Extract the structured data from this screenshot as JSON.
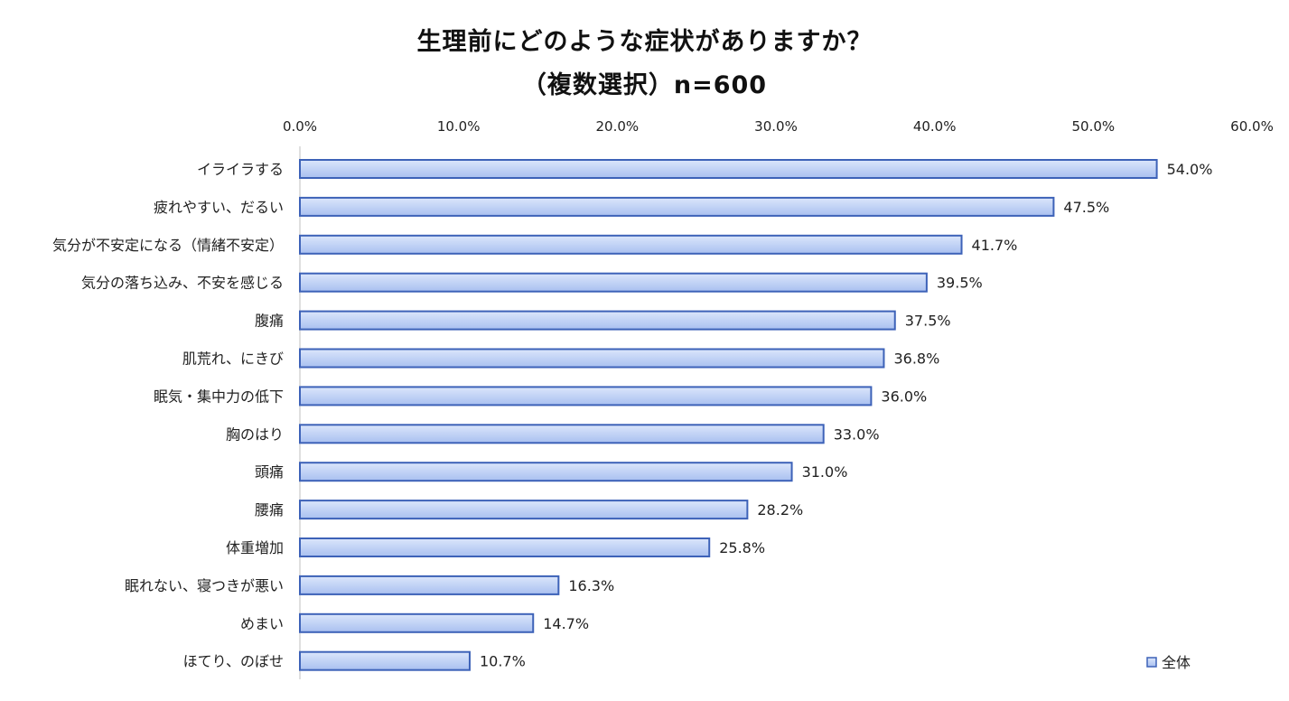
{
  "chart_data": {
    "type": "bar",
    "orientation": "horizontal",
    "title": "生理前にどのような症状がありますか？",
    "subtitle": "（複数選択）n=600",
    "xlim": [
      0,
      60
    ],
    "x_ticks": [
      "0.0%",
      "10.0%",
      "20.0%",
      "30.0%",
      "40.0%",
      "50.0%",
      "60.0%"
    ],
    "x_tick_values": [
      0,
      10,
      20,
      30,
      40,
      50,
      60
    ],
    "grid": false,
    "legend_position": "bottom-right",
    "categories": [
      "イライラする",
      "疲れやすい、だるい",
      "気分が不安定になる（情緒不安定）",
      "気分の落ち込み、不安を感じる",
      "腹痛",
      "肌荒れ、にきび",
      "眠気・集中力の低下",
      "胸のはり",
      "頭痛",
      "腰痛",
      "体重増加",
      "眠れない、寝つきが悪い",
      "めまい",
      "ほてり、のぼせ"
    ],
    "series": [
      {
        "name": "全体",
        "values": [
          54.0,
          47.5,
          41.7,
          39.5,
          37.5,
          36.8,
          36.0,
          33.0,
          31.0,
          28.2,
          25.8,
          16.3,
          14.7,
          10.7
        ],
        "labels": [
          "54.0%",
          "47.5%",
          "41.7%",
          "39.5%",
          "37.5%",
          "36.8%",
          "36.0%",
          "33.0%",
          "31.0%",
          "28.2%",
          "25.8%",
          "16.3%",
          "14.7%",
          "10.7%"
        ]
      }
    ],
    "colors": {
      "bar_fill_top": "#dbe6fb",
      "bar_fill_bottom": "#a9c0f0",
      "bar_stroke": "#3d62b8",
      "axis": "#bfbfbf"
    }
  }
}
